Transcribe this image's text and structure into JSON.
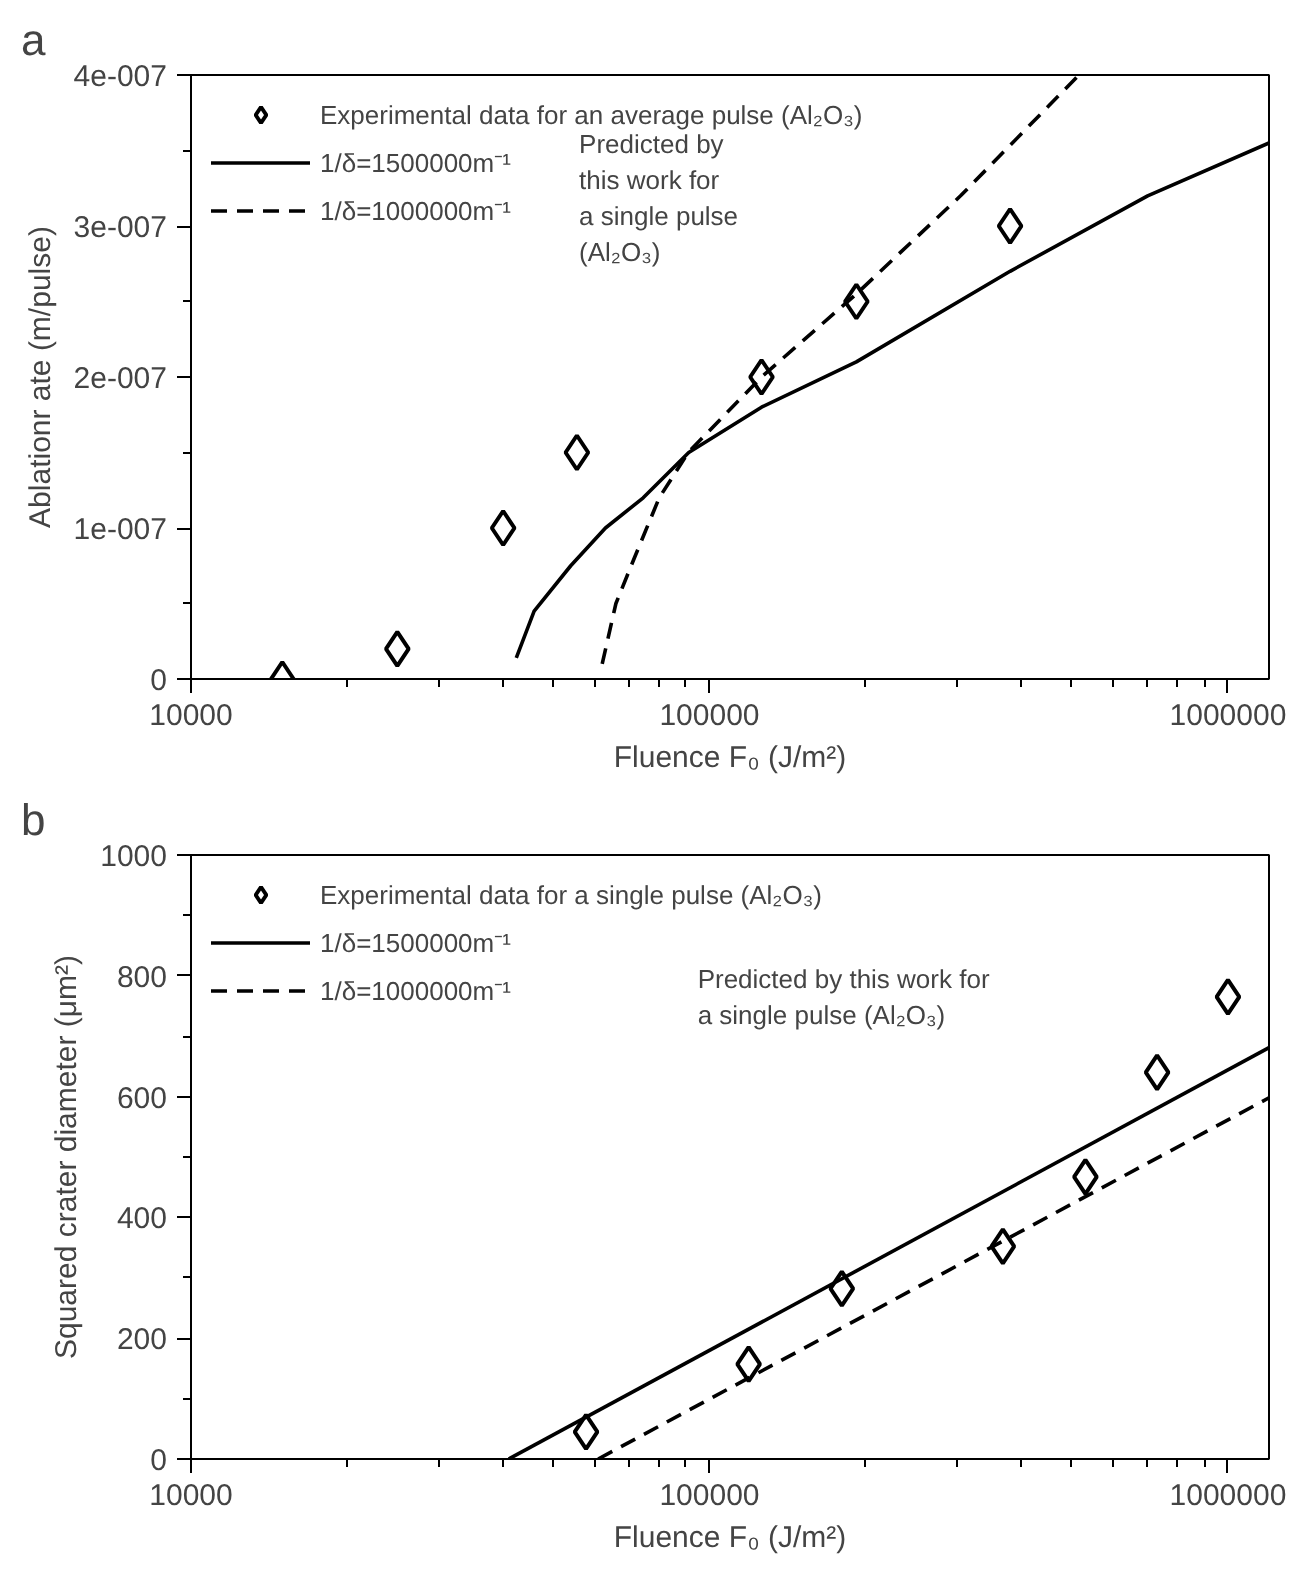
{
  "chart_data": [
    {
      "type": "scatter",
      "title": "a",
      "xlabel": "Fluence F₀ (J/m²)",
      "ylabel": "Ablationr ate (m/pulse)",
      "log": "x",
      "xlim": [
        10000,
        1200000
      ],
      "ylim": [
        0,
        4e-07
      ],
      "xticks": [
        10000,
        {
          "value": 20000,
          "label": null
        },
        {
          "value": 30000,
          "label": null
        },
        {
          "value": 40000,
          "label": null
        },
        {
          "value": 50000,
          "label": null
        },
        {
          "value": 60000,
          "label": null
        },
        {
          "value": 70000,
          "label": null
        },
        {
          "value": 80000,
          "label": null
        },
        {
          "value": 90000,
          "label": null
        },
        100000,
        {
          "value": 200000,
          "label": null
        },
        {
          "value": 300000,
          "label": null
        },
        {
          "value": 400000,
          "label": null
        },
        {
          "value": 500000,
          "label": null
        },
        {
          "value": 600000,
          "label": null
        },
        {
          "value": 700000,
          "label": null
        },
        {
          "value": 800000,
          "label": null
        },
        {
          "value": 900000,
          "label": null
        },
        1000000
      ],
      "yticks": [
        {
          "value": 0,
          "label": "0"
        },
        {
          "value": 5e-08,
          "label": null
        },
        {
          "value": 1e-07,
          "label": "1e-007"
        },
        {
          "value": 1.5e-07,
          "label": null
        },
        {
          "value": 2e-07,
          "label": "2e-007"
        },
        {
          "value": 2.5e-07,
          "label": null
        },
        {
          "value": 3e-07,
          "label": "3e-007"
        },
        {
          "value": 3.5e-07,
          "label": null
        },
        {
          "value": 4e-07,
          "label": "4e-007"
        }
      ],
      "grid": false,
      "legend": "top left",
      "series": [
        {
          "name": "Experimental data for an average pulse (Al₂O₃)",
          "type": "scatter",
          "marker": "diamond",
          "color": "#000000",
          "x": [
            15000,
            25000,
            40000,
            55500,
            126000,
            192000,
            380000
          ],
          "values": [
            0,
            2e-08,
            1e-07,
            1.5e-07,
            2e-07,
            2.5e-07,
            3e-07
          ]
        },
        {
          "name": "1/δ=1500000m⁻¹",
          "type": "line",
          "line_style": "solid",
          "color": "#000000",
          "x": [
            42400,
            45900,
            54000,
            63000,
            74500,
            91200,
            126000,
            192000,
            380000,
            700000,
            1200000
          ],
          "values": [
            1.4e-08,
            4.5e-08,
            7.5e-08,
            1e-07,
            1.2e-07,
            1.5e-07,
            1.8e-07,
            2.1e-07,
            2.7e-07,
            3.2e-07,
            3.55e-07
          ]
        },
        {
          "name": "1/δ=1000000m⁻¹",
          "type": "line",
          "line_style": "dashed",
          "color": "#000000",
          "x": [
            62100,
            66000,
            71600,
            80000,
            91000,
            126000,
            192000,
            305000,
            516000
          ],
          "values": [
            1e-08,
            5e-08,
            8e-08,
            1.2e-07,
            1.5e-07,
            2e-07,
            2.55e-07,
            3.2e-07,
            4e-07
          ]
        }
      ],
      "annotations": [
        "Predicted by\nthis work for\na single pulse\n(Al₂O₃)"
      ]
    },
    {
      "type": "scatter",
      "title": "b",
      "xlabel": "Fluence F₀ (J/m²)",
      "ylabel": "Squared crater diameter (μm²)",
      "log": "x",
      "xlim": [
        10000,
        1200000
      ],
      "ylim": [
        0,
        1000
      ],
      "xticks": [
        10000,
        {
          "value": 20000,
          "label": null
        },
        {
          "value": 30000,
          "label": null
        },
        {
          "value": 40000,
          "label": null
        },
        {
          "value": 50000,
          "label": null
        },
        {
          "value": 60000,
          "label": null
        },
        {
          "value": 70000,
          "label": null
        },
        {
          "value": 80000,
          "label": null
        },
        {
          "value": 90000,
          "label": null
        },
        100000,
        {
          "value": 200000,
          "label": null
        },
        {
          "value": 300000,
          "label": null
        },
        {
          "value": 400000,
          "label": null
        },
        {
          "value": 500000,
          "label": null
        },
        {
          "value": 600000,
          "label": null
        },
        {
          "value": 700000,
          "label": null
        },
        {
          "value": 800000,
          "label": null
        },
        {
          "value": 900000,
          "label": null
        },
        1000000
      ],
      "yticks": [
        0,
        {
          "value": 100,
          "label": null
        },
        200,
        {
          "value": 300,
          "label": null
        },
        400,
        {
          "value": 500,
          "label": null
        },
        600,
        {
          "value": 700,
          "label": null
        },
        800,
        {
          "value": 900,
          "label": null
        },
        1000
      ],
      "grid": false,
      "legend": "top left",
      "series": [
        {
          "name": "Experimental data for a single pulse (Al₂O₃)",
          "type": "scatter",
          "marker": "diamond",
          "color": "#000000",
          "x": [
            57800,
            119000,
            180000,
            368000,
            531000,
            730000,
            1000000
          ],
          "values": [
            45,
            157,
            282,
            352,
            467,
            640,
            765
          ]
        },
        {
          "name": "1/δ=1500000m⁻¹",
          "type": "line",
          "line_style": "solid",
          "color": "#000000",
          "x": [
            41000,
            1200000
          ],
          "values": [
            0,
            681
          ]
        },
        {
          "name": "1/δ=1000000m⁻¹",
          "type": "line",
          "line_style": "dashed",
          "color": "#000000",
          "x": [
            61000,
            1200000
          ],
          "values": [
            0,
            598
          ]
        }
      ],
      "annotations": [
        "Predicted by this work for\na single pulse (Al₂O₃)"
      ]
    }
  ]
}
